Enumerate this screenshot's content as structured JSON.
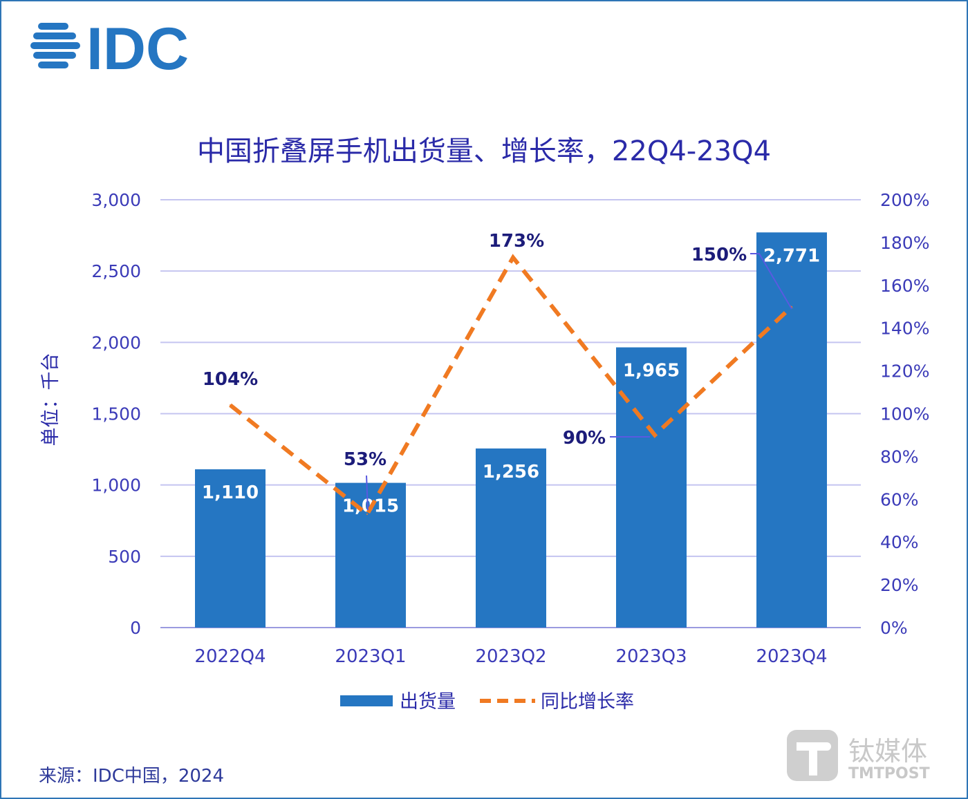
{
  "logo": {
    "text": "IDC",
    "color": "#2576c2"
  },
  "watermark": {
    "cn": "钛媒体",
    "en": "TMTPOST"
  },
  "source": "来源：IDC中国，2024",
  "chart_data": {
    "type": "bar+line",
    "title": "中国折叠屏手机出货量、增长率，22Q4-23Q4",
    "ylabel": "单位：千台",
    "categories": [
      "2022Q4",
      "2023Q1",
      "2023Q2",
      "2023Q3",
      "2023Q4"
    ],
    "series": [
      {
        "name": "出货量",
        "type": "bar",
        "axis": "left",
        "color": "#2576c2",
        "values": [
          1110,
          1015,
          1256,
          1965,
          2771
        ],
        "labels": [
          "1,110",
          "1,015",
          "1,256",
          "1,965",
          "2,771"
        ]
      },
      {
        "name": "同比增长率",
        "type": "line",
        "style": "dashed",
        "axis": "right",
        "color": "#f07a22",
        "values": [
          104,
          53,
          173,
          90,
          150
        ],
        "labels": [
          "104%",
          "53%",
          "173%",
          "90%",
          "150%"
        ]
      }
    ],
    "ylim": [
      0,
      3000
    ],
    "y2lim": [
      0,
      200
    ],
    "yticks": [
      "0",
      "500",
      "1,000",
      "1,500",
      "2,000",
      "2,500",
      "3,000"
    ],
    "y2ticks": [
      "0%",
      "20%",
      "40%",
      "60%",
      "80%",
      "100%",
      "120%",
      "140%",
      "160%",
      "180%",
      "200%"
    ],
    "grid": true,
    "legend": "bottom"
  }
}
